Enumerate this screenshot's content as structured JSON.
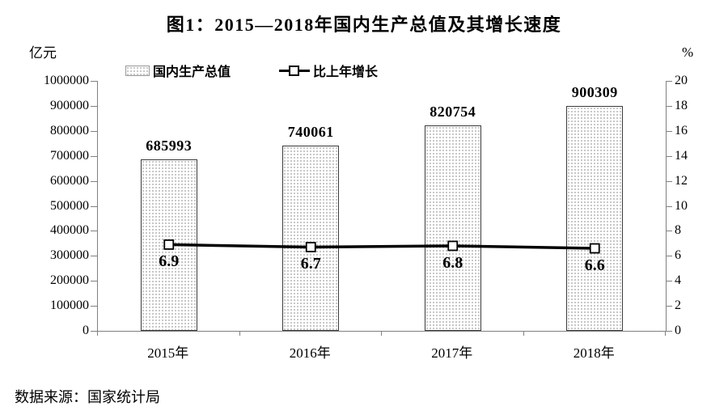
{
  "title": "图1：2015—2018年国内生产总值及其增长速度",
  "source": "数据来源：国家统计局",
  "legend": [
    {
      "label": "国内生产总值",
      "swatch": "dotted-bar-swatch"
    },
    {
      "label": "比上年增长",
      "swatch": "line-marker-swatch"
    }
  ],
  "chart_data": {
    "type": "bar+line",
    "title": "图1：2015—2018年国内生产总值及其增长速度",
    "categories": [
      "2015年",
      "2016年",
      "2017年",
      "2018年"
    ],
    "series": [
      {
        "name": "国内生产总值",
        "type": "bar",
        "axis": "left",
        "values": [
          685993,
          740061,
          820754,
          900309
        ]
      },
      {
        "name": "比上年增长",
        "type": "line",
        "axis": "right",
        "values": [
          6.9,
          6.7,
          6.8,
          6.6
        ]
      }
    ],
    "left_axis": {
      "label": "亿元",
      "min": 0,
      "max": 1000000,
      "step": 100000
    },
    "right_axis": {
      "label": "%",
      "min": 0,
      "max": 20,
      "step": 2
    },
    "grid": false,
    "legend_position": "top",
    "colors": {
      "line": "#000000",
      "bar_border": "#3a3a3a",
      "bar_fill": "#ffffff",
      "bar_dot": "#b5b5b5",
      "axis": "#808080",
      "text": "#000000"
    }
  }
}
